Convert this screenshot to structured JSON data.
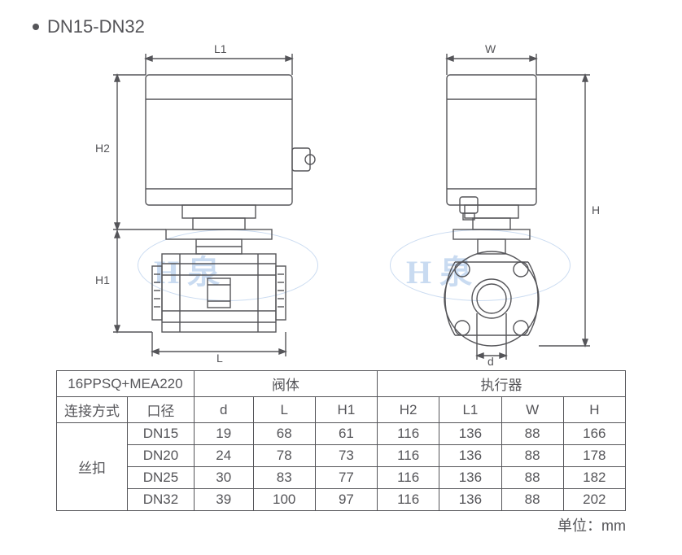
{
  "title": "DN15-DN32",
  "unit_label": "单位：mm",
  "dim_labels": {
    "L1": "L1",
    "H2": "H2",
    "H1": "H1",
    "L": "L",
    "W": "W",
    "H": "H",
    "d": "d"
  },
  "watermark_text": "H 泉",
  "colors": {
    "line": "#555559",
    "text": "#555559",
    "watermark": "#6699d8",
    "background": "#ffffff"
  },
  "line_width": 1.4,
  "table": {
    "header1": [
      "16PPSQ+MEA220",
      "阀体",
      "执行器"
    ],
    "header2": [
      "连接方式",
      "口径",
      "d",
      "L",
      "H1",
      "H2",
      "L1",
      "W",
      "H"
    ],
    "connection_label": "丝扣",
    "rows": [
      [
        "DN15",
        19,
        68,
        61,
        116,
        136,
        88,
        166
      ],
      [
        "DN20",
        24,
        78,
        73,
        116,
        136,
        88,
        178
      ],
      [
        "DN25",
        30,
        83,
        77,
        116,
        136,
        88,
        182
      ],
      [
        "DN32",
        39,
        100,
        97,
        116,
        136,
        88,
        202
      ]
    ],
    "col_widths_pct": [
      12.5,
      11,
      10.5,
      11,
      11,
      11,
      11,
      11,
      11
    ]
  }
}
